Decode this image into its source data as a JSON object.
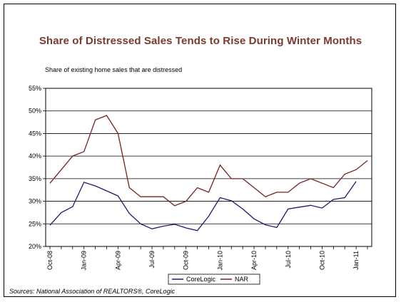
{
  "chart_data": {
    "type": "line",
    "title": "Share of Distressed Sales Tends to Rise During Winter Months",
    "subtitle": "Share of existing home sales that are distressed",
    "source": "Sources: National Association of REALTORS®, CoreLogic",
    "y_ticks": [
      "55%",
      "50%",
      "45%",
      "40%",
      "35%",
      "30%",
      "25%",
      "20%"
    ],
    "ylim": [
      20,
      55
    ],
    "x_tick_labels": [
      {
        "label": "Oct-08",
        "index": 0
      },
      {
        "label": "Jan-09",
        "index": 3
      },
      {
        "label": "Apr-09",
        "index": 6
      },
      {
        "label": "Jul-09",
        "index": 9
      },
      {
        "label": "Oct-09",
        "index": 12
      },
      {
        "label": "Jan-10",
        "index": 15
      },
      {
        "label": "Apr-10",
        "index": 18
      },
      {
        "label": "Jul-10",
        "index": 21
      },
      {
        "label": "Oct-10",
        "index": 24
      },
      {
        "label": "Jan-11",
        "index": 27
      }
    ],
    "series": [
      {
        "name": "CoreLogic",
        "color": "#1f1a6e",
        "values": [
          24.7,
          27.5,
          28.8,
          34.2,
          33.4,
          32.3,
          31.2,
          27.3,
          25.0,
          23.9,
          24.5,
          24.9,
          24.1,
          23.5,
          26.7,
          30.8,
          30.1,
          28.3,
          26.1,
          24.8,
          24.2,
          28.3,
          28.7,
          29.1,
          28.5,
          30.4,
          30.8,
          34.4
        ]
      },
      {
        "name": "NAR",
        "color": "#7b2020",
        "values": [
          34.0,
          37.0,
          40.0,
          41.0,
          48.0,
          49.0,
          45.0,
          33.0,
          31.0,
          31.0,
          31.0,
          29.0,
          30.0,
          33.0,
          32.0,
          38.0,
          35.0,
          35.0,
          33.0,
          31.0,
          32.0,
          32.0,
          34.0,
          35.0,
          34.0,
          33.0,
          36.0,
          37.0,
          39.0
        ]
      }
    ],
    "legend_position": "bottom-center",
    "grid": true
  }
}
